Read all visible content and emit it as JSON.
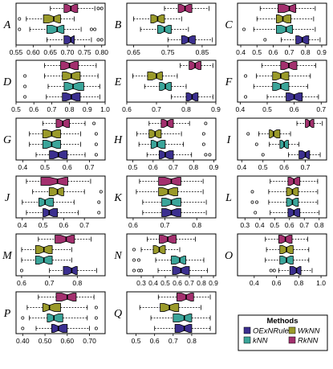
{
  "chart_data": {
    "type": "boxplot",
    "colors": {
      "OExNRule": "#3b2f8f",
      "kNN": "#3ba59a",
      "WkNN": "#9a9a2a",
      "RkNN": "#a3306e"
    },
    "legend": {
      "title": "Methods",
      "entries": [
        "OExNRule",
        "kNN",
        "WkNN",
        "RkNN"
      ],
      "position": "bottom-right"
    },
    "series_order": [
      "RkNN",
      "WkNN",
      "kNN",
      "OExNRule"
    ],
    "panels": [
      {
        "label": "A",
        "xlim": [
          0.55,
          0.81
        ],
        "ticks": [
          0.55,
          0.6,
          0.65,
          0.7,
          0.75,
          0.8
        ],
        "boxes": [
          {
            "method": "RkNN",
            "min": 0.65,
            "q1": 0.69,
            "median": 0.71,
            "q3": 0.73,
            "max": 0.78,
            "outliers": [
              0.79,
              0.8
            ]
          },
          {
            "method": "WkNN",
            "min": 0.58,
            "q1": 0.63,
            "median": 0.66,
            "q3": 0.68,
            "max": 0.72,
            "outliers": [
              0.56
            ]
          },
          {
            "method": "kNN",
            "min": 0.59,
            "q1": 0.64,
            "median": 0.67,
            "q3": 0.69,
            "max": 0.74,
            "outliers": [
              0.56,
              0.77,
              0.78
            ]
          },
          {
            "method": "OExNRule",
            "min": 0.64,
            "q1": 0.69,
            "median": 0.71,
            "q3": 0.72,
            "max": 0.77,
            "outliers": [
              0.79,
              0.8
            ]
          }
        ]
      },
      {
        "label": "B",
        "xlim": [
          0.63,
          0.89
        ],
        "ticks": [
          0.65,
          0.75,
          0.85
        ],
        "boxes": [
          {
            "method": "RkNN",
            "min": 0.74,
            "q1": 0.78,
            "median": 0.8,
            "q3": 0.82,
            "max": 0.87,
            "outliers": []
          },
          {
            "method": "WkNN",
            "min": 0.65,
            "q1": 0.7,
            "median": 0.72,
            "q3": 0.74,
            "max": 0.79,
            "outliers": []
          },
          {
            "method": "kNN",
            "min": 0.67,
            "q1": 0.72,
            "median": 0.74,
            "q3": 0.76,
            "max": 0.81,
            "outliers": []
          },
          {
            "method": "OExNRule",
            "min": 0.75,
            "q1": 0.79,
            "median": 0.81,
            "q3": 0.83,
            "max": 0.88,
            "outliers": []
          }
        ]
      },
      {
        "label": "C",
        "xlim": [
          0.38,
          0.93
        ],
        "ticks": [
          0.4,
          0.5,
          0.6,
          0.7,
          0.8,
          0.9
        ],
        "boxes": [
          {
            "method": "RkNN",
            "min": 0.52,
            "q1": 0.63,
            "median": 0.7,
            "q3": 0.74,
            "max": 0.86,
            "outliers": []
          },
          {
            "method": "WkNN",
            "min": 0.5,
            "q1": 0.62,
            "median": 0.66,
            "q3": 0.71,
            "max": 0.85,
            "outliers": []
          },
          {
            "method": "kNN",
            "min": 0.48,
            "q1": 0.62,
            "median": 0.68,
            "q3": 0.72,
            "max": 0.86,
            "outliers": [
              0.42
            ]
          },
          {
            "method": "OExNRule",
            "min": 0.65,
            "q1": 0.74,
            "median": 0.78,
            "q3": 0.82,
            "max": 0.89,
            "outliers": [
              0.55
            ]
          }
        ]
      },
      {
        "label": "D",
        "xlim": [
          0.5,
          1.0
        ],
        "ticks": [
          0.5,
          0.6,
          0.7,
          0.8,
          0.9,
          1.0
        ],
        "boxes": [
          {
            "method": "RkNN",
            "min": 0.66,
            "q1": 0.75,
            "median": 0.8,
            "q3": 0.85,
            "max": 0.95,
            "outliers": []
          },
          {
            "method": "WkNN",
            "min": 0.66,
            "q1": 0.76,
            "median": 0.81,
            "q3": 0.86,
            "max": 0.96,
            "outliers": [
              0.55
            ]
          },
          {
            "method": "kNN",
            "min": 0.68,
            "q1": 0.77,
            "median": 0.82,
            "q3": 0.88,
            "max": 0.97,
            "outliers": [
              0.55
            ]
          },
          {
            "method": "OExNRule",
            "min": 0.67,
            "q1": 0.76,
            "median": 0.81,
            "q3": 0.86,
            "max": 0.97,
            "outliers": [
              0.55
            ]
          }
        ]
      },
      {
        "label": "E",
        "xlim": [
          0.6,
          0.9
        ],
        "ticks": [
          0.6,
          0.7,
          0.8,
          0.9
        ],
        "boxes": [
          {
            "method": "RkNN",
            "min": 0.78,
            "q1": 0.81,
            "median": 0.83,
            "q3": 0.85,
            "max": 0.89,
            "outliers": []
          },
          {
            "method": "WkNN",
            "min": 0.62,
            "q1": 0.67,
            "median": 0.7,
            "q3": 0.72,
            "max": 0.77,
            "outliers": []
          },
          {
            "method": "kNN",
            "min": 0.66,
            "q1": 0.71,
            "median": 0.73,
            "q3": 0.75,
            "max": 0.8,
            "outliers": []
          },
          {
            "method": "OExNRule",
            "min": 0.75,
            "q1": 0.8,
            "median": 0.82,
            "q3": 0.84,
            "max": 0.89,
            "outliers": []
          }
        ]
      },
      {
        "label": "F",
        "xlim": [
          0.39,
          0.72
        ],
        "ticks": [
          0.4,
          0.5,
          0.6,
          0.7
        ],
        "boxes": [
          {
            "method": "RkNN",
            "min": 0.48,
            "q1": 0.55,
            "median": 0.58,
            "q3": 0.61,
            "max": 0.68,
            "outliers": []
          },
          {
            "method": "WkNN",
            "min": 0.46,
            "q1": 0.52,
            "median": 0.55,
            "q3": 0.58,
            "max": 0.66,
            "outliers": [
              0.42
            ]
          },
          {
            "method": "kNN",
            "min": 0.45,
            "q1": 0.52,
            "median": 0.55,
            "q3": 0.58,
            "max": 0.65,
            "outliers": []
          },
          {
            "method": "OExNRule",
            "min": 0.5,
            "q1": 0.57,
            "median": 0.6,
            "q3": 0.63,
            "max": 0.69,
            "outliers": [
              0.42
            ]
          }
        ]
      },
      {
        "label": "G",
        "xlim": [
          0.37,
          0.77
        ],
        "ticks": [
          0.4,
          0.5,
          0.6,
          0.7
        ],
        "boxes": [
          {
            "method": "RkNN",
            "min": 0.49,
            "q1": 0.55,
            "median": 0.58,
            "q3": 0.61,
            "max": 0.68,
            "outliers": [
              0.72
            ]
          },
          {
            "method": "WkNN",
            "min": 0.43,
            "q1": 0.49,
            "median": 0.53,
            "q3": 0.57,
            "max": 0.66,
            "outliers": [
              0.73
            ]
          },
          {
            "method": "kNN",
            "min": 0.43,
            "q1": 0.49,
            "median": 0.53,
            "q3": 0.57,
            "max": 0.66,
            "outliers": [
              0.73
            ]
          },
          {
            "method": "OExNRule",
            "min": 0.46,
            "q1": 0.52,
            "median": 0.56,
            "q3": 0.6,
            "max": 0.68,
            "outliers": [
              0.73
            ]
          }
        ]
      },
      {
        "label": "H",
        "xlim": [
          0.47,
          0.91
        ],
        "ticks": [
          0.5,
          0.6,
          0.7,
          0.8,
          0.9
        ],
        "boxes": [
          {
            "method": "RkNN",
            "min": 0.58,
            "q1": 0.64,
            "median": 0.67,
            "q3": 0.7,
            "max": 0.78,
            "outliers": [
              0.86
            ]
          },
          {
            "method": "WkNN",
            "min": 0.52,
            "q1": 0.58,
            "median": 0.61,
            "q3": 0.64,
            "max": 0.74,
            "outliers": [
              0.85
            ]
          },
          {
            "method": "kNN",
            "min": 0.53,
            "q1": 0.59,
            "median": 0.62,
            "q3": 0.66,
            "max": 0.75,
            "outliers": [
              0.85
            ]
          },
          {
            "method": "OExNRule",
            "min": 0.57,
            "q1": 0.63,
            "median": 0.66,
            "q3": 0.7,
            "max": 0.79,
            "outliers": [
              0.86,
              0.88
            ]
          }
        ]
      },
      {
        "label": "I",
        "xlim": [
          0.38,
          0.8
        ],
        "ticks": [
          0.4,
          0.5,
          0.6,
          0.7
        ],
        "boxes": [
          {
            "method": "RkNN",
            "min": 0.66,
            "q1": 0.7,
            "median": 0.72,
            "q3": 0.74,
            "max": 0.78,
            "outliers": []
          },
          {
            "method": "WkNN",
            "min": 0.48,
            "q1": 0.53,
            "median": 0.55,
            "q3": 0.58,
            "max": 0.63,
            "outliers": [
              0.43
            ]
          },
          {
            "method": "kNN",
            "min": 0.53,
            "q1": 0.58,
            "median": 0.6,
            "q3": 0.62,
            "max": 0.67,
            "outliers": [
              0.47
            ]
          },
          {
            "method": "OExNRule",
            "min": 0.62,
            "q1": 0.67,
            "median": 0.7,
            "q3": 0.72,
            "max": 0.77,
            "outliers": [
              0.5
            ]
          }
        ]
      },
      {
        "label": "J",
        "xlim": [
          0.37,
          0.8
        ],
        "ticks": [
          0.4,
          0.5,
          0.6,
          0.7
        ],
        "boxes": [
          {
            "method": "RkNN",
            "min": 0.42,
            "q1": 0.49,
            "median": 0.57,
            "q3": 0.62,
            "max": 0.73,
            "outliers": []
          },
          {
            "method": "WkNN",
            "min": 0.45,
            "q1": 0.53,
            "median": 0.57,
            "q3": 0.6,
            "max": 0.7,
            "outliers": [
              0.78
            ]
          },
          {
            "method": "kNN",
            "min": 0.4,
            "q1": 0.48,
            "median": 0.51,
            "q3": 0.55,
            "max": 0.65,
            "outliers": [
              0.77
            ]
          },
          {
            "method": "OExNRule",
            "min": 0.42,
            "q1": 0.5,
            "median": 0.53,
            "q3": 0.57,
            "max": 0.67,
            "outliers": [
              0.77
            ]
          }
        ]
      },
      {
        "label": "K",
        "xlim": [
          0.58,
          0.86
        ],
        "ticks": [
          0.6,
          0.7,
          0.8
        ],
        "boxes": [
          {
            "method": "RkNN",
            "min": 0.62,
            "q1": 0.68,
            "median": 0.72,
            "q3": 0.75,
            "max": 0.82,
            "outliers": []
          },
          {
            "method": "WkNN",
            "min": 0.61,
            "q1": 0.68,
            "median": 0.71,
            "q3": 0.74,
            "max": 0.82,
            "outliers": []
          },
          {
            "method": "kNN",
            "min": 0.63,
            "q1": 0.69,
            "median": 0.72,
            "q3": 0.75,
            "max": 0.83,
            "outliers": []
          },
          {
            "method": "OExNRule",
            "min": 0.63,
            "q1": 0.69,
            "median": 0.72,
            "q3": 0.75,
            "max": 0.83,
            "outliers": []
          }
        ]
      },
      {
        "label": "L",
        "xlim": [
          0.25,
          0.85
        ],
        "ticks": [
          0.3,
          0.4,
          0.5,
          0.6,
          0.7,
          0.8
        ],
        "boxes": [
          {
            "method": "RkNN",
            "min": 0.47,
            "q1": 0.59,
            "median": 0.63,
            "q3": 0.67,
            "max": 0.79,
            "outliers": []
          },
          {
            "method": "WkNN",
            "min": 0.46,
            "q1": 0.58,
            "median": 0.62,
            "q3": 0.66,
            "max": 0.79,
            "outliers": [
              0.35
            ]
          },
          {
            "method": "kNN",
            "min": 0.46,
            "q1": 0.58,
            "median": 0.62,
            "q3": 0.66,
            "max": 0.79,
            "outliers": [
              0.35,
              0.38
            ]
          },
          {
            "method": "OExNRule",
            "min": 0.47,
            "q1": 0.59,
            "median": 0.63,
            "q3": 0.67,
            "max": 0.8,
            "outliers": [
              0.37
            ]
          }
        ]
      },
      {
        "label": "M",
        "xlim": [
          0.58,
          0.9
        ],
        "ticks": [
          0.6,
          0.7,
          0.8
        ],
        "boxes": [
          {
            "method": "RkNN",
            "min": 0.66,
            "q1": 0.72,
            "median": 0.76,
            "q3": 0.79,
            "max": 0.85,
            "outliers": []
          },
          {
            "method": "WkNN",
            "min": 0.6,
            "q1": 0.65,
            "median": 0.68,
            "q3": 0.71,
            "max": 0.78,
            "outliers": []
          },
          {
            "method": "kNN",
            "min": 0.6,
            "q1": 0.65,
            "median": 0.68,
            "q3": 0.71,
            "max": 0.78,
            "outliers": []
          },
          {
            "method": "OExNRule",
            "min": 0.7,
            "q1": 0.75,
            "median": 0.78,
            "q3": 0.8,
            "max": 0.87,
            "outliers": [
              0.6
            ]
          }
        ]
      },
      {
        "label": "N",
        "xlim": [
          0.18,
          0.92
        ],
        "ticks": [
          0.3,
          0.4,
          0.5,
          0.6,
          0.7,
          0.8,
          0.9
        ],
        "boxes": [
          {
            "method": "RkNN",
            "min": 0.35,
            "q1": 0.45,
            "median": 0.52,
            "q3": 0.59,
            "max": 0.75,
            "outliers": []
          },
          {
            "method": "WkNN",
            "min": 0.3,
            "q1": 0.4,
            "median": 0.45,
            "q3": 0.5,
            "max": 0.62,
            "outliers": [
              0.24
            ]
          },
          {
            "method": "kNN",
            "min": 0.42,
            "q1": 0.55,
            "median": 0.62,
            "q3": 0.67,
            "max": 0.82,
            "outliers": [
              0.24,
              0.28
            ]
          },
          {
            "method": "OExNRule",
            "min": 0.44,
            "q1": 0.56,
            "median": 0.63,
            "q3": 0.7,
            "max": 0.85,
            "outliers": [
              0.24,
              0.28,
              0.3
            ]
          }
        ]
      },
      {
        "label": "O",
        "xlim": [
          0.25,
          1.05
        ],
        "ticks": [
          0.4,
          0.6,
          0.8,
          1.0
        ],
        "boxes": [
          {
            "method": "RkNN",
            "min": 0.5,
            "q1": 0.62,
            "median": 0.68,
            "q3": 0.74,
            "max": 0.88,
            "outliers": []
          },
          {
            "method": "WkNN",
            "min": 0.51,
            "q1": 0.63,
            "median": 0.69,
            "q3": 0.75,
            "max": 0.89,
            "outliers": []
          },
          {
            "method": "kNN",
            "min": 0.5,
            "q1": 0.63,
            "median": 0.69,
            "q3": 0.75,
            "max": 0.89,
            "outliers": []
          },
          {
            "method": "OExNRule",
            "min": 0.62,
            "q1": 0.72,
            "median": 0.78,
            "q3": 0.82,
            "max": 0.92,
            "outliers": [
              0.55,
              0.58
            ]
          }
        ]
      },
      {
        "label": "P",
        "xlim": [
          0.37,
          0.77
        ],
        "ticks": [
          0.4,
          0.5,
          0.6,
          0.7
        ],
        "boxes": [
          {
            "method": "RkNN",
            "min": 0.47,
            "q1": 0.55,
            "median": 0.6,
            "q3": 0.64,
            "max": 0.72,
            "outliers": []
          },
          {
            "method": "WkNN",
            "min": 0.42,
            "q1": 0.49,
            "median": 0.52,
            "q3": 0.57,
            "max": 0.69,
            "outliers": [
              0.73
            ]
          },
          {
            "method": "kNN",
            "min": 0.43,
            "q1": 0.51,
            "median": 0.54,
            "q3": 0.58,
            "max": 0.69,
            "outliers": [
              0.4,
              0.73
            ]
          },
          {
            "method": "OExNRule",
            "min": 0.46,
            "q1": 0.53,
            "median": 0.56,
            "q3": 0.6,
            "max": 0.7,
            "outliers": [
              0.4,
              0.73
            ]
          }
        ]
      },
      {
        "label": "Q",
        "xlim": [
          0.45,
          0.93
        ],
        "ticks": [
          0.5,
          0.6,
          0.7,
          0.8
        ],
        "boxes": [
          {
            "method": "RkNN",
            "min": 0.62,
            "q1": 0.72,
            "median": 0.77,
            "q3": 0.81,
            "max": 0.9,
            "outliers": []
          },
          {
            "method": "WkNN",
            "min": 0.52,
            "q1": 0.63,
            "median": 0.68,
            "q3": 0.73,
            "max": 0.85,
            "outliers": []
          },
          {
            "method": "kNN",
            "min": 0.58,
            "q1": 0.7,
            "median": 0.76,
            "q3": 0.8,
            "max": 0.9,
            "outliers": []
          },
          {
            "method": "OExNRule",
            "min": 0.6,
            "q1": 0.71,
            "median": 0.76,
            "q3": 0.8,
            "max": 0.9,
            "outliers": []
          }
        ]
      }
    ]
  }
}
